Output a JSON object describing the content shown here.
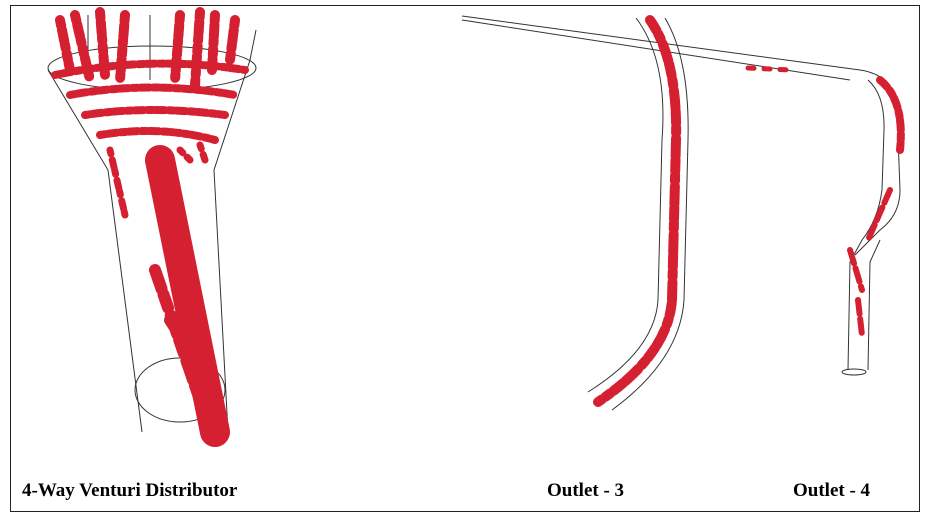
{
  "labels": [
    "4-Way Venturi Distributor",
    "Outlet - 3",
    "Outlet - 4"
  ]
}
